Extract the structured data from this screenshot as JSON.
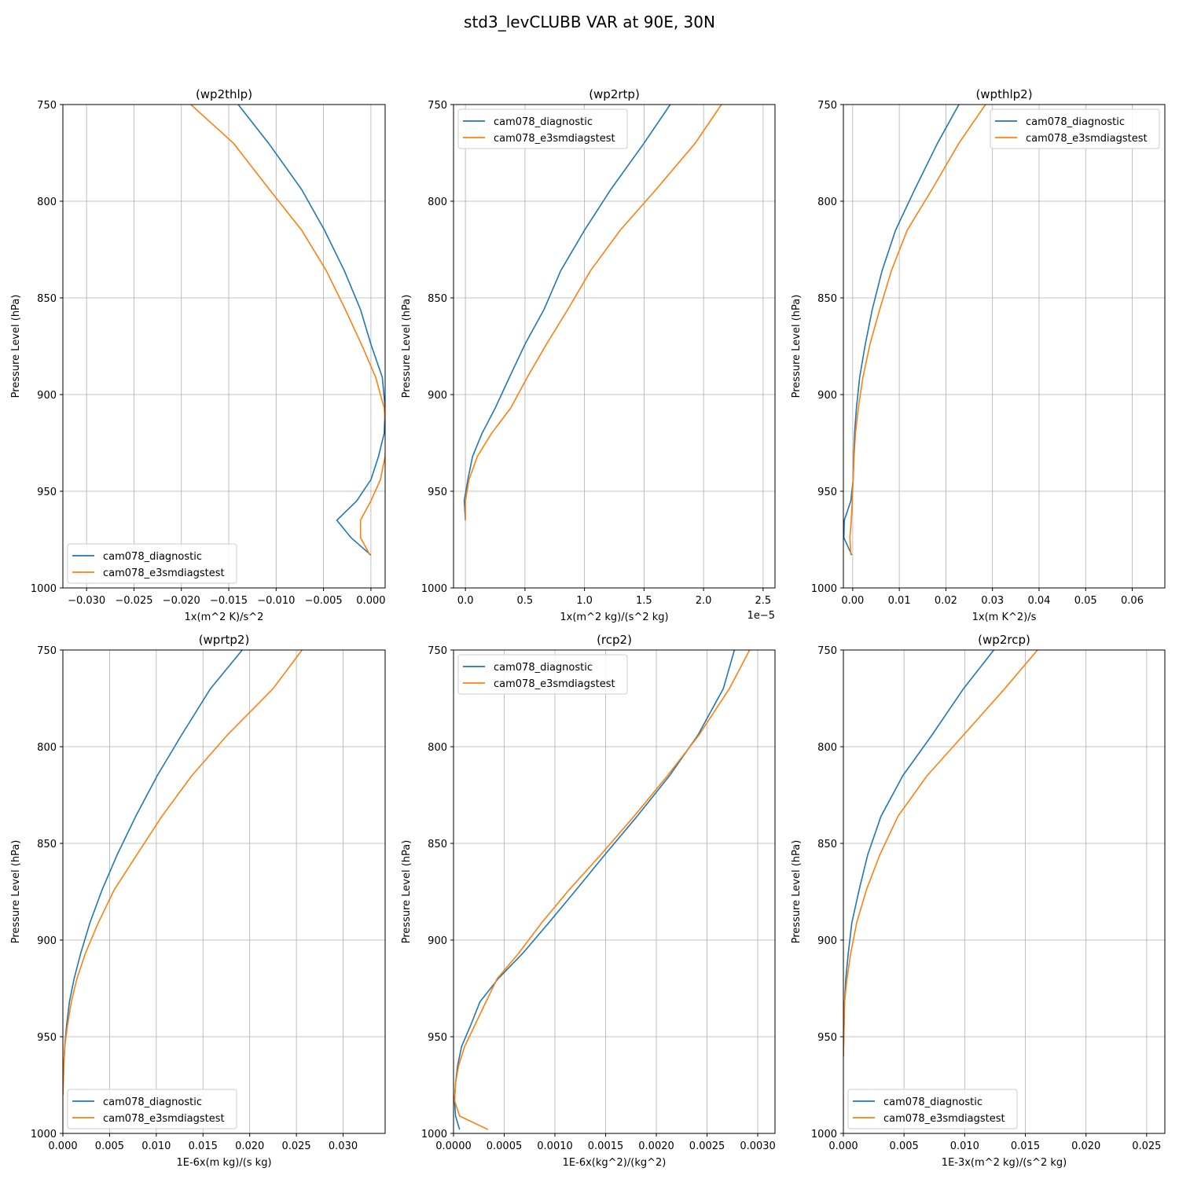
{
  "figure": {
    "title": "std3_levCLUBB VAR at 90E, 30N"
  },
  "colors": {
    "series_1": "#1f77b4",
    "series_2": "#ff7f0e",
    "grid": "#b0b0b0"
  },
  "chart_data": [
    {
      "type": "line",
      "title": "(wp2thlp)",
      "xlabel": "1x(m^2 K)/s^2",
      "ylabel": "Pressure Level (hPa)",
      "xlim": [
        -0.0325,
        0.0015
      ],
      "ylim": [
        1000,
        750
      ],
      "xticks": [
        -0.03,
        -0.025,
        -0.02,
        -0.015,
        -0.01,
        -0.005,
        0.0
      ],
      "xtick_labels": [
        "−0.030",
        "−0.025",
        "−0.020",
        "−0.015",
        "−0.010",
        "−0.005",
        "0.000"
      ],
      "yticks": [
        750,
        800,
        850,
        900,
        950,
        1000
      ],
      "grid": true,
      "legend_position": "lower left",
      "series": [
        {
          "name": "cam078_diagnostic",
          "color": "#1f77b4",
          "x": [
            -0.014,
            -0.0108,
            -0.0073,
            -0.0049,
            -0.0028,
            -0.0011,
            0.0,
            0.0012,
            0.0015,
            0.0014,
            0.0008,
            0.0,
            -0.0015,
            -0.0036,
            -0.0021,
            0.0
          ],
          "y": [
            750,
            770,
            794,
            815,
            836,
            856,
            874,
            891,
            907,
            920,
            932,
            944,
            955,
            965,
            974,
            983
          ]
        },
        {
          "name": "cam078_e3smdiagstest",
          "color": "#ff7f0e",
          "x": [
            -0.019,
            -0.0145,
            -0.0107,
            -0.0073,
            -0.0047,
            -0.0027,
            -0.001,
            0.0005,
            0.0014,
            0.0016,
            0.0015,
            0.001,
            0.0,
            -0.0011,
            -0.0011,
            -0.0001
          ],
          "y": [
            750,
            770,
            794,
            815,
            836,
            856,
            874,
            891,
            907,
            920,
            932,
            944,
            955,
            965,
            974,
            983
          ]
        }
      ]
    },
    {
      "type": "line",
      "title": "(wp2rtp)",
      "xlabel": "1x(m^2 kg)/(s^2 kg)",
      "ylabel": "Pressure Level (hPa)",
      "x_multiplier_label": "1e−5",
      "xlim": [
        -0.1,
        2.6
      ],
      "ylim": [
        1000,
        750
      ],
      "xticks": [
        0.0,
        0.5,
        1.0,
        1.5,
        2.0,
        2.5
      ],
      "xtick_labels": [
        "0.0",
        "0.5",
        "1.0",
        "1.5",
        "2.0",
        "2.5"
      ],
      "yticks": [
        750,
        800,
        850,
        900,
        950,
        1000
      ],
      "grid": true,
      "legend_position": "upper left",
      "series": [
        {
          "name": "cam078_diagnostic",
          "color": "#1f77b4",
          "x": [
            1.72,
            1.5,
            1.22,
            1.0,
            0.8,
            0.66,
            0.5,
            0.37,
            0.25,
            0.14,
            0.06,
            0.02,
            -0.01,
            0.0
          ],
          "y": [
            750,
            770,
            794,
            815,
            836,
            856,
            874,
            891,
            907,
            920,
            932,
            944,
            955,
            965
          ]
        },
        {
          "name": "cam078_e3smdiagstest",
          "color": "#ff7f0e",
          "x": [
            2.15,
            1.93,
            1.6,
            1.3,
            1.05,
            0.86,
            0.68,
            0.52,
            0.38,
            0.22,
            0.1,
            0.03,
            0.0,
            0.0
          ],
          "y": [
            750,
            770,
            794,
            815,
            836,
            856,
            874,
            891,
            907,
            920,
            932,
            944,
            955,
            965
          ]
        }
      ]
    },
    {
      "type": "line",
      "title": "(wpthlp2)",
      "xlabel": "1x(m K^2)/s",
      "ylabel": "Pressure Level (hPa)",
      "xlim": [
        -0.002,
        0.067
      ],
      "ylim": [
        1000,
        750
      ],
      "xticks": [
        0.0,
        0.01,
        0.02,
        0.03,
        0.04,
        0.05,
        0.06
      ],
      "xtick_labels": [
        "0.00",
        "0.01",
        "0.02",
        "0.03",
        "0.04",
        "0.05",
        "0.06"
      ],
      "yticks": [
        750,
        800,
        850,
        900,
        950,
        1000
      ],
      "grid": true,
      "legend_position": "upper right",
      "series": [
        {
          "name": "cam078_diagnostic",
          "color": "#1f77b4",
          "x": [
            0.0228,
            0.0182,
            0.0133,
            0.0092,
            0.0063,
            0.0042,
            0.0027,
            0.0015,
            0.0008,
            0.0004,
            0.0002,
            0.0001,
            -0.0004,
            -0.0018,
            -0.0019,
            -0.0002
          ],
          "y": [
            750,
            770,
            794,
            815,
            836,
            856,
            874,
            891,
            907,
            920,
            932,
            944,
            955,
            965,
            974,
            983
          ]
        },
        {
          "name": "cam078_e3smdiagstest",
          "color": "#ff7f0e",
          "x": [
            0.0285,
            0.0228,
            0.017,
            0.0117,
            0.0083,
            0.0058,
            0.0037,
            0.0022,
            0.0012,
            0.0006,
            0.0003,
            0.0001,
            -0.0001,
            -0.0003,
            -0.0006,
            -0.0004
          ],
          "y": [
            750,
            770,
            794,
            815,
            836,
            856,
            874,
            891,
            907,
            920,
            932,
            944,
            955,
            965,
            974,
            983
          ]
        }
      ]
    },
    {
      "type": "line",
      "title": "(wprtp2)",
      "xlabel": "1E-6x(m kg)/(s kg)",
      "ylabel": "Pressure Level (hPa)",
      "xlim": [
        0.0,
        0.0345
      ],
      "ylim": [
        1000,
        750
      ],
      "xticks": [
        0.0,
        0.005,
        0.01,
        0.015,
        0.02,
        0.025,
        0.03
      ],
      "xtick_labels": [
        "0.000",
        "0.005",
        "0.010",
        "0.015",
        "0.020",
        "0.025",
        "0.030"
      ],
      "yticks": [
        750,
        800,
        850,
        900,
        950,
        1000
      ],
      "grid": true,
      "legend_position": "lower left",
      "series": [
        {
          "name": "cam078_diagnostic",
          "color": "#1f77b4",
          "x": [
            0.0192,
            0.0158,
            0.0127,
            0.0101,
            0.0078,
            0.0058,
            0.0042,
            0.0029,
            0.0019,
            0.0012,
            0.0007,
            0.0004,
            0.0002,
            0.0001,
            0.0
          ],
          "y": [
            750,
            770,
            794,
            815,
            836,
            856,
            874,
            891,
            907,
            920,
            932,
            944,
            955,
            965,
            980
          ]
        },
        {
          "name": "cam078_e3smdiagstest",
          "color": "#ff7f0e",
          "x": [
            0.0256,
            0.0225,
            0.0176,
            0.0138,
            0.0106,
            0.0079,
            0.0055,
            0.0038,
            0.0024,
            0.0015,
            0.0009,
            0.0005,
            0.0002,
            0.0001,
            0.0
          ],
          "y": [
            750,
            770,
            794,
            815,
            836,
            856,
            874,
            891,
            907,
            920,
            932,
            944,
            955,
            965,
            980
          ]
        }
      ]
    },
    {
      "type": "line",
      "title": "(rcp2)",
      "xlabel": "1E-6x(kg^2)/(kg^2)",
      "ylabel": "Pressure Level (hPa)",
      "xlim": [
        0.0,
        0.00317
      ],
      "ylim": [
        1000,
        750
      ],
      "xticks": [
        0.0,
        0.0005,
        0.001,
        0.0015,
        0.002,
        0.0025,
        0.003
      ],
      "xtick_labels": [
        "0.0000",
        "0.0005",
        "0.0010",
        "0.0015",
        "0.0020",
        "0.0025",
        "0.0030"
      ],
      "yticks": [
        750,
        800,
        850,
        900,
        950,
        1000
      ],
      "grid": true,
      "legend_position": "upper left",
      "series": [
        {
          "name": "cam078_diagnostic",
          "color": "#1f77b4",
          "x": [
            0.00277,
            0.00266,
            0.00241,
            0.00213,
            0.00181,
            0.00149,
            0.00121,
            0.00094,
            0.00068,
            0.00044,
            0.00026,
            0.00017,
            8e-05,
            4e-05,
            2e-05,
            1e-05,
            2e-05,
            6e-05
          ],
          "y": [
            750,
            770,
            794,
            815,
            836,
            856,
            874,
            891,
            907,
            920,
            932,
            944,
            955,
            965,
            974,
            983,
            991,
            998
          ]
        },
        {
          "name": "cam078_e3smdiagstest",
          "color": "#ff7f0e",
          "x": [
            0.00292,
            0.00272,
            0.00242,
            0.00211,
            0.00178,
            0.00145,
            0.00114,
            0.00087,
            0.00064,
            0.00043,
            0.00032,
            0.00021,
            0.00011,
            5e-05,
            2e-05,
            1e-05,
            6e-05,
            0.00034
          ],
          "y": [
            750,
            770,
            794,
            815,
            836,
            856,
            874,
            891,
            907,
            920,
            932,
            944,
            955,
            965,
            974,
            983,
            991,
            998
          ]
        }
      ]
    },
    {
      "type": "line",
      "title": "(wp2rcp)",
      "xlabel": "1E-3x(m^2 kg)/(s^2 kg)",
      "ylabel": "Pressure Level (hPa)",
      "xlim": [
        0.0,
        0.0265
      ],
      "ylim": [
        1000,
        750
      ],
      "xticks": [
        0.0,
        0.005,
        0.01,
        0.015,
        0.02,
        0.025
      ],
      "xtick_labels": [
        "0.000",
        "0.005",
        "0.010",
        "0.015",
        "0.020",
        "0.025"
      ],
      "yticks": [
        750,
        800,
        850,
        900,
        950,
        1000
      ],
      "grid": true,
      "legend_position": "lower left",
      "series": [
        {
          "name": "cam078_diagnostic",
          "color": "#1f77b4",
          "x": [
            0.0124,
            0.0099,
            0.0073,
            0.0049,
            0.0031,
            0.002,
            0.0013,
            0.0007,
            0.0004,
            0.0002,
            0.0001,
            0.0
          ],
          "y": [
            750,
            770,
            794,
            815,
            836,
            856,
            874,
            891,
            907,
            920,
            932,
            960
          ]
        },
        {
          "name": "cam078_e3smdiagstest",
          "color": "#ff7f0e",
          "x": [
            0.016,
            0.0133,
            0.0099,
            0.0069,
            0.0045,
            0.003,
            0.0019,
            0.0011,
            0.0006,
            0.0003,
            0.0001,
            0.0
          ],
          "y": [
            750,
            770,
            794,
            815,
            836,
            856,
            874,
            891,
            907,
            920,
            932,
            960
          ]
        }
      ]
    }
  ]
}
